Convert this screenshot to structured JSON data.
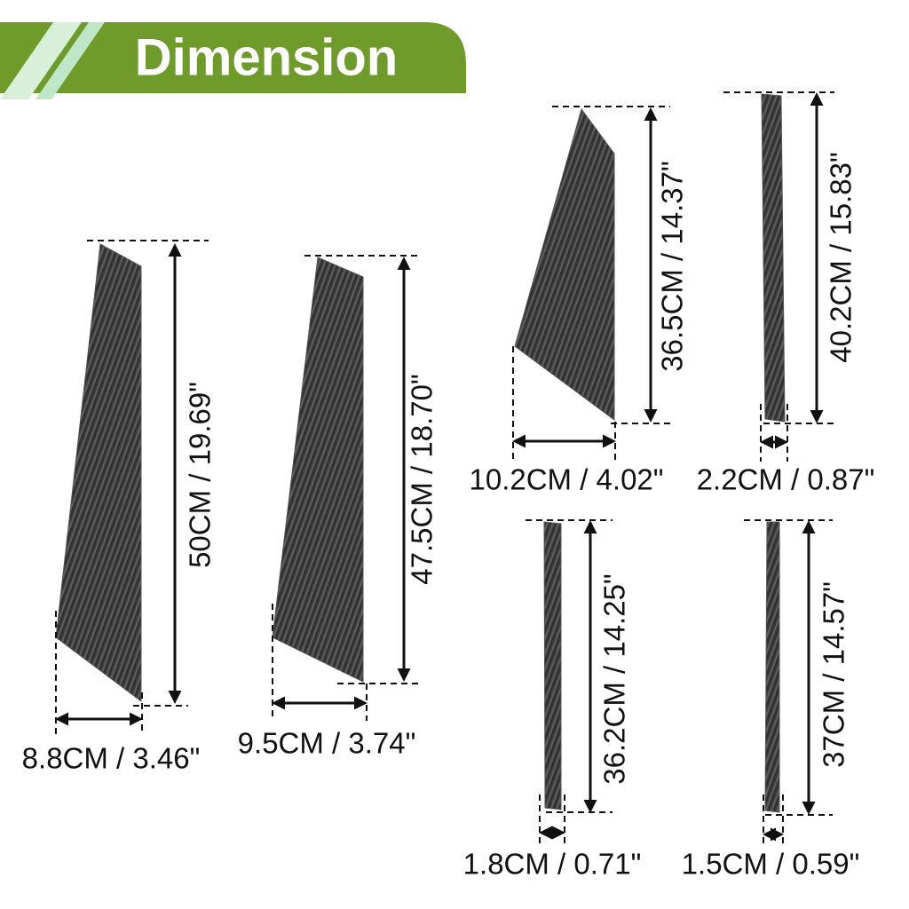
{
  "header": {
    "title": "Dimension"
  },
  "pieces": [
    {
      "height": "50CM / 19.69\"",
      "width": "8.8CM / 3.46\""
    },
    {
      "height": "47.5CM / 18.70\"",
      "width": "9.5CM / 3.74\""
    },
    {
      "height": "36.5CM / 14.37\"",
      "width": "10.2CM / 4.02\""
    },
    {
      "height": "40.2CM / 15.83\"",
      "width": "2.2CM / 0.87\""
    },
    {
      "height": "36.2CM / 14.25\"",
      "width": "1.8CM / 0.71\""
    },
    {
      "height": "37CM / 14.57\"",
      "width": "1.5CM / 0.59\""
    }
  ]
}
